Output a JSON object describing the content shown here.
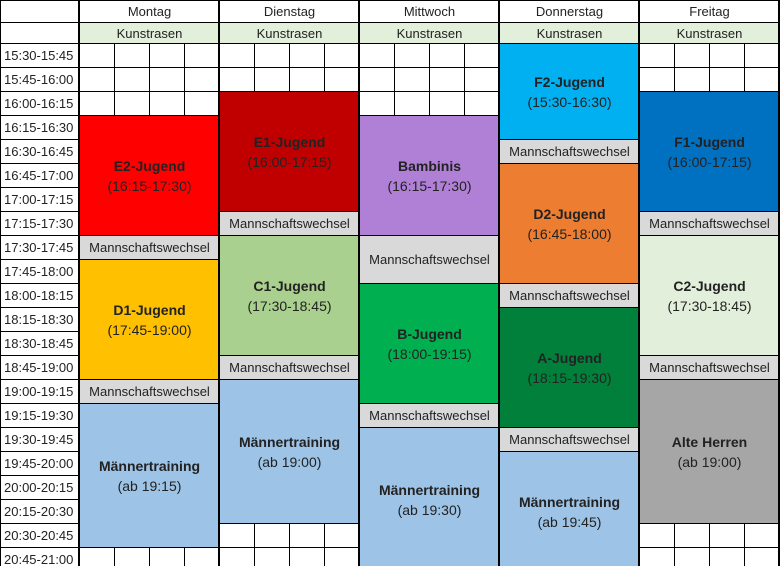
{
  "subheader": "Kunstrasen",
  "times": [
    "15:30-15:45",
    "15:45-16:00",
    "16:00-16:15",
    "16:15-16:30",
    "16:30-16:45",
    "16:45-17:00",
    "17:00-17:15",
    "17:15-17:30",
    "17:30-17:45",
    "17:45-18:00",
    "18:00-18:15",
    "18:15-18:30",
    "18:30-18:45",
    "18:45-19:00",
    "19:00-19:15",
    "19:15-19:30",
    "19:30-19:45",
    "19:45-20:00",
    "20:00-20:15",
    "20:15-20:30",
    "20:30-20:45",
    "20:45-21:00"
  ],
  "days": [
    {
      "name": "Montag",
      "blocks": [
        {
          "label": "E2-Jugend",
          "time": "(16:15-17:30)",
          "start": "16:15",
          "end": "17:30",
          "color": "#ff0000"
        },
        {
          "label": "Mannschaftswechsel",
          "start": "17:30",
          "end": "17:45",
          "color": "#d9d9d9",
          "mw": true
        },
        {
          "label": "D1-Jugend",
          "time": "(17:45-19:00)",
          "start": "17:45",
          "end": "19:00",
          "color": "#ffc000"
        },
        {
          "label": "Mannschaftswechsel",
          "start": "19:00",
          "end": "19:15",
          "color": "#d9d9d9",
          "mw": true
        },
        {
          "label": "Männertraining",
          "time": "(ab 19:15)",
          "start": "19:15",
          "end": "20:45",
          "color": "#9dc3e6"
        }
      ]
    },
    {
      "name": "Dienstag",
      "blocks": [
        {
          "label": "E1-Jugend",
          "time": "(16:00-17:15)",
          "start": "16:00",
          "end": "17:15",
          "color": "#c00000"
        },
        {
          "label": "Mannschaftswechsel",
          "start": "17:15",
          "end": "17:30",
          "color": "#d9d9d9",
          "mw": true
        },
        {
          "label": "C1-Jugend",
          "time": "(17:30-18:45)",
          "start": "17:30",
          "end": "18:45",
          "color": "#a9d08e"
        },
        {
          "label": "Mannschaftswechsel",
          "start": "18:45",
          "end": "19:00",
          "color": "#d9d9d9",
          "mw": true
        },
        {
          "label": "Männertraining",
          "time": "(ab 19:00)",
          "start": "19:00",
          "end": "20:30",
          "color": "#9dc3e6"
        }
      ]
    },
    {
      "name": "Mittwoch",
      "blocks": [
        {
          "label": "Bambinis",
          "time": "(16:15-17:30)",
          "start": "16:15",
          "end": "17:30",
          "color": "#b07fd6"
        },
        {
          "label": "Mannschaftswechsel",
          "start": "17:30",
          "end": "18:00",
          "color": "#d9d9d9",
          "mw": true
        },
        {
          "label": "B-Jugend",
          "time": "(18:00-19:15)",
          "start": "18:00",
          "end": "19:15",
          "color": "#00b050"
        },
        {
          "label": "Mannschaftswechsel",
          "start": "19:15",
          "end": "19:30",
          "color": "#d9d9d9",
          "mw": true
        },
        {
          "label": "Männertraining",
          "time": "(ab 19:30)",
          "start": "19:30",
          "end": "21:00",
          "color": "#9dc3e6"
        }
      ]
    },
    {
      "name": "Donnerstag",
      "blocks": [
        {
          "label": "F2-Jugend",
          "time": "(15:30-16:30)",
          "start": "15:30",
          "end": "16:30",
          "color": "#00b0f0"
        },
        {
          "label": "Mannschaftswechsel",
          "start": "16:30",
          "end": "16:45",
          "color": "#d9d9d9",
          "mw": true
        },
        {
          "label": "D2-Jugend",
          "time": "(16:45-18:00)",
          "start": "16:45",
          "end": "18:00",
          "color": "#ed7d31"
        },
        {
          "label": "Mannschaftswechsel",
          "start": "18:00",
          "end": "18:15",
          "color": "#d9d9d9",
          "mw": true
        },
        {
          "label": "A-Jugend",
          "time": "(18:15-19:30)",
          "start": "18:15",
          "end": "19:30",
          "color": "#00803a"
        },
        {
          "label": "Mannschaftswechsel",
          "start": "19:30",
          "end": "19:45",
          "color": "#d9d9d9",
          "mw": true
        },
        {
          "label": "Männertraining",
          "time": "(ab 19:45)",
          "start": "19:45",
          "end": "21:00",
          "color": "#9dc3e6"
        }
      ]
    },
    {
      "name": "Freitag",
      "blocks": [
        {
          "label": "F1-Jugend",
          "time": "(16:00-17:15)",
          "start": "16:00",
          "end": "17:15",
          "color": "#0070c0"
        },
        {
          "label": "Mannschaftswechsel",
          "start": "17:15",
          "end": "17:30",
          "color": "#d9d9d9",
          "mw": true
        },
        {
          "label": "C2-Jugend",
          "time": "(17:30-18:45)",
          "start": "17:30",
          "end": "18:45",
          "color": "#e2efda"
        },
        {
          "label": "Mannschaftswechsel",
          "start": "18:45",
          "end": "19:00",
          "color": "#d9d9d9",
          "mw": true
        },
        {
          "label": "Alte Herren",
          "time": "(ab 19:00)",
          "start": "19:00",
          "end": "20:30",
          "color": "#a6a6a6"
        }
      ]
    }
  ],
  "colors": {
    "subheader_bg": "#e2efda",
    "border": "#000000"
  }
}
